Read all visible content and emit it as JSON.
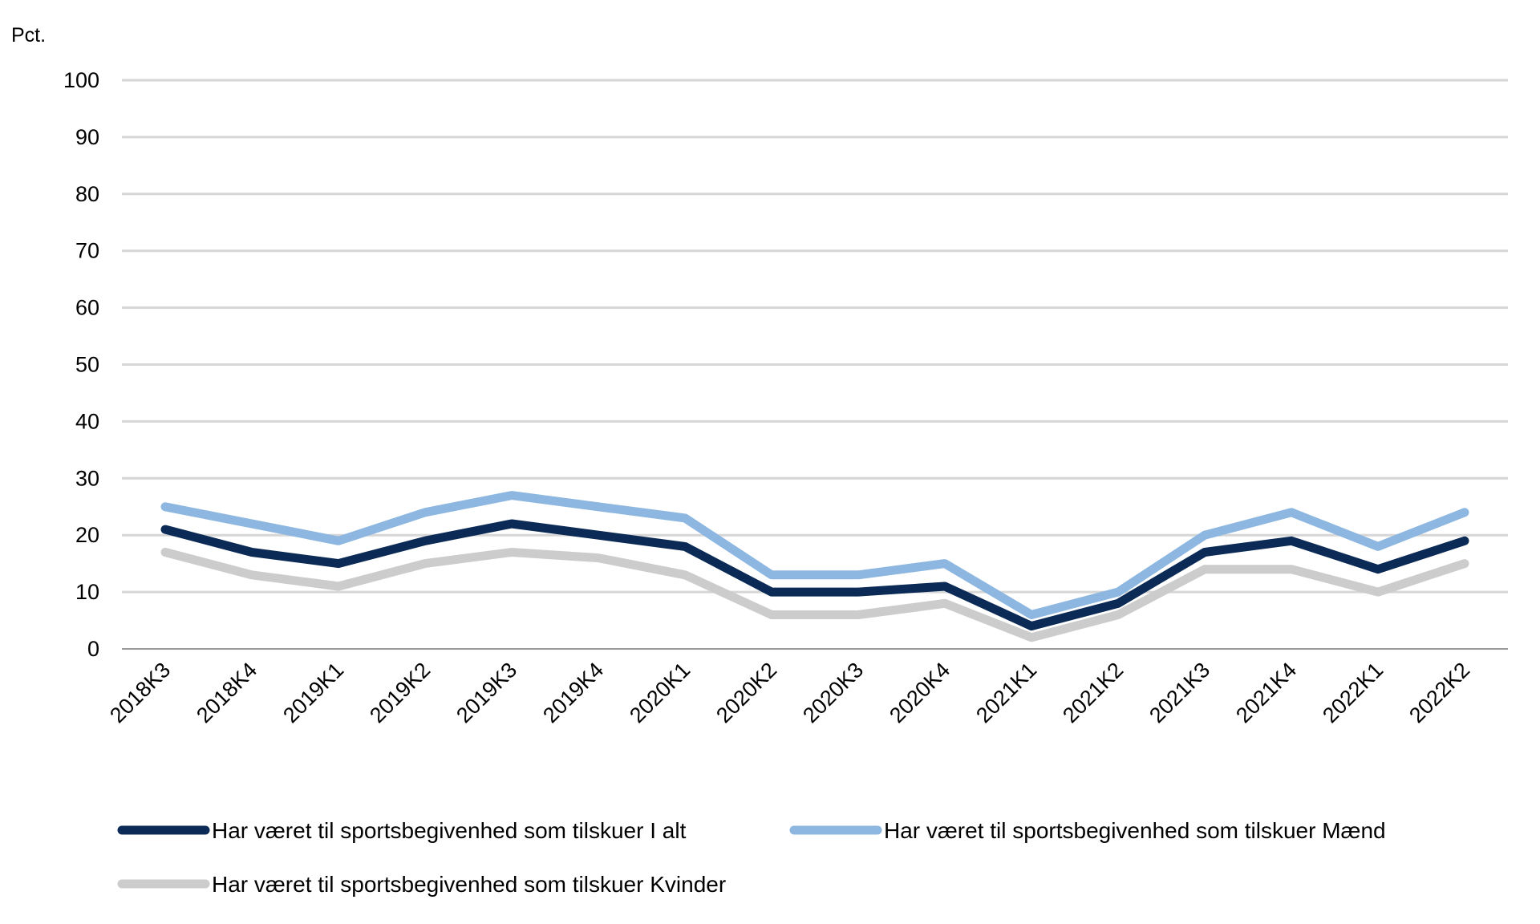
{
  "chart_data": {
    "type": "line",
    "ylabel": "Pct.",
    "ylim": [
      0,
      100
    ],
    "yticks": [
      "0",
      "10",
      "20",
      "30",
      "40",
      "50",
      "60",
      "70",
      "80",
      "90",
      "100"
    ],
    "grid": true,
    "legend_position": "bottom",
    "categories": [
      "2018K3",
      "2018K4",
      "2019K1",
      "2019K2",
      "2019K3",
      "2019K4",
      "2020K1",
      "2020K2",
      "2020K3",
      "2020K4",
      "2021K1",
      "2021K2",
      "2021K3",
      "2021K4",
      "2022K1",
      "2022K2"
    ],
    "series": [
      {
        "name": "Har været til sportsbegivenhed som tilskuer I alt",
        "color": "#0b2a55",
        "values": [
          21,
          17,
          15,
          19,
          22,
          20,
          18,
          10,
          10,
          11,
          4,
          8,
          17,
          19,
          14,
          19
        ]
      },
      {
        "name": "Har været til sportsbegivenhed som tilskuer Mænd",
        "color": "#8db7e0",
        "values": [
          25,
          22,
          19,
          24,
          27,
          25,
          23,
          13,
          13,
          15,
          6,
          10,
          20,
          24,
          18,
          24
        ]
      },
      {
        "name": "Har været til sportsbegivenhed som tilskuer Kvinder",
        "color": "#cccccc",
        "values": [
          17,
          13,
          11,
          15,
          17,
          16,
          13,
          6,
          6,
          8,
          2,
          6,
          14,
          14,
          10,
          15
        ]
      }
    ]
  }
}
